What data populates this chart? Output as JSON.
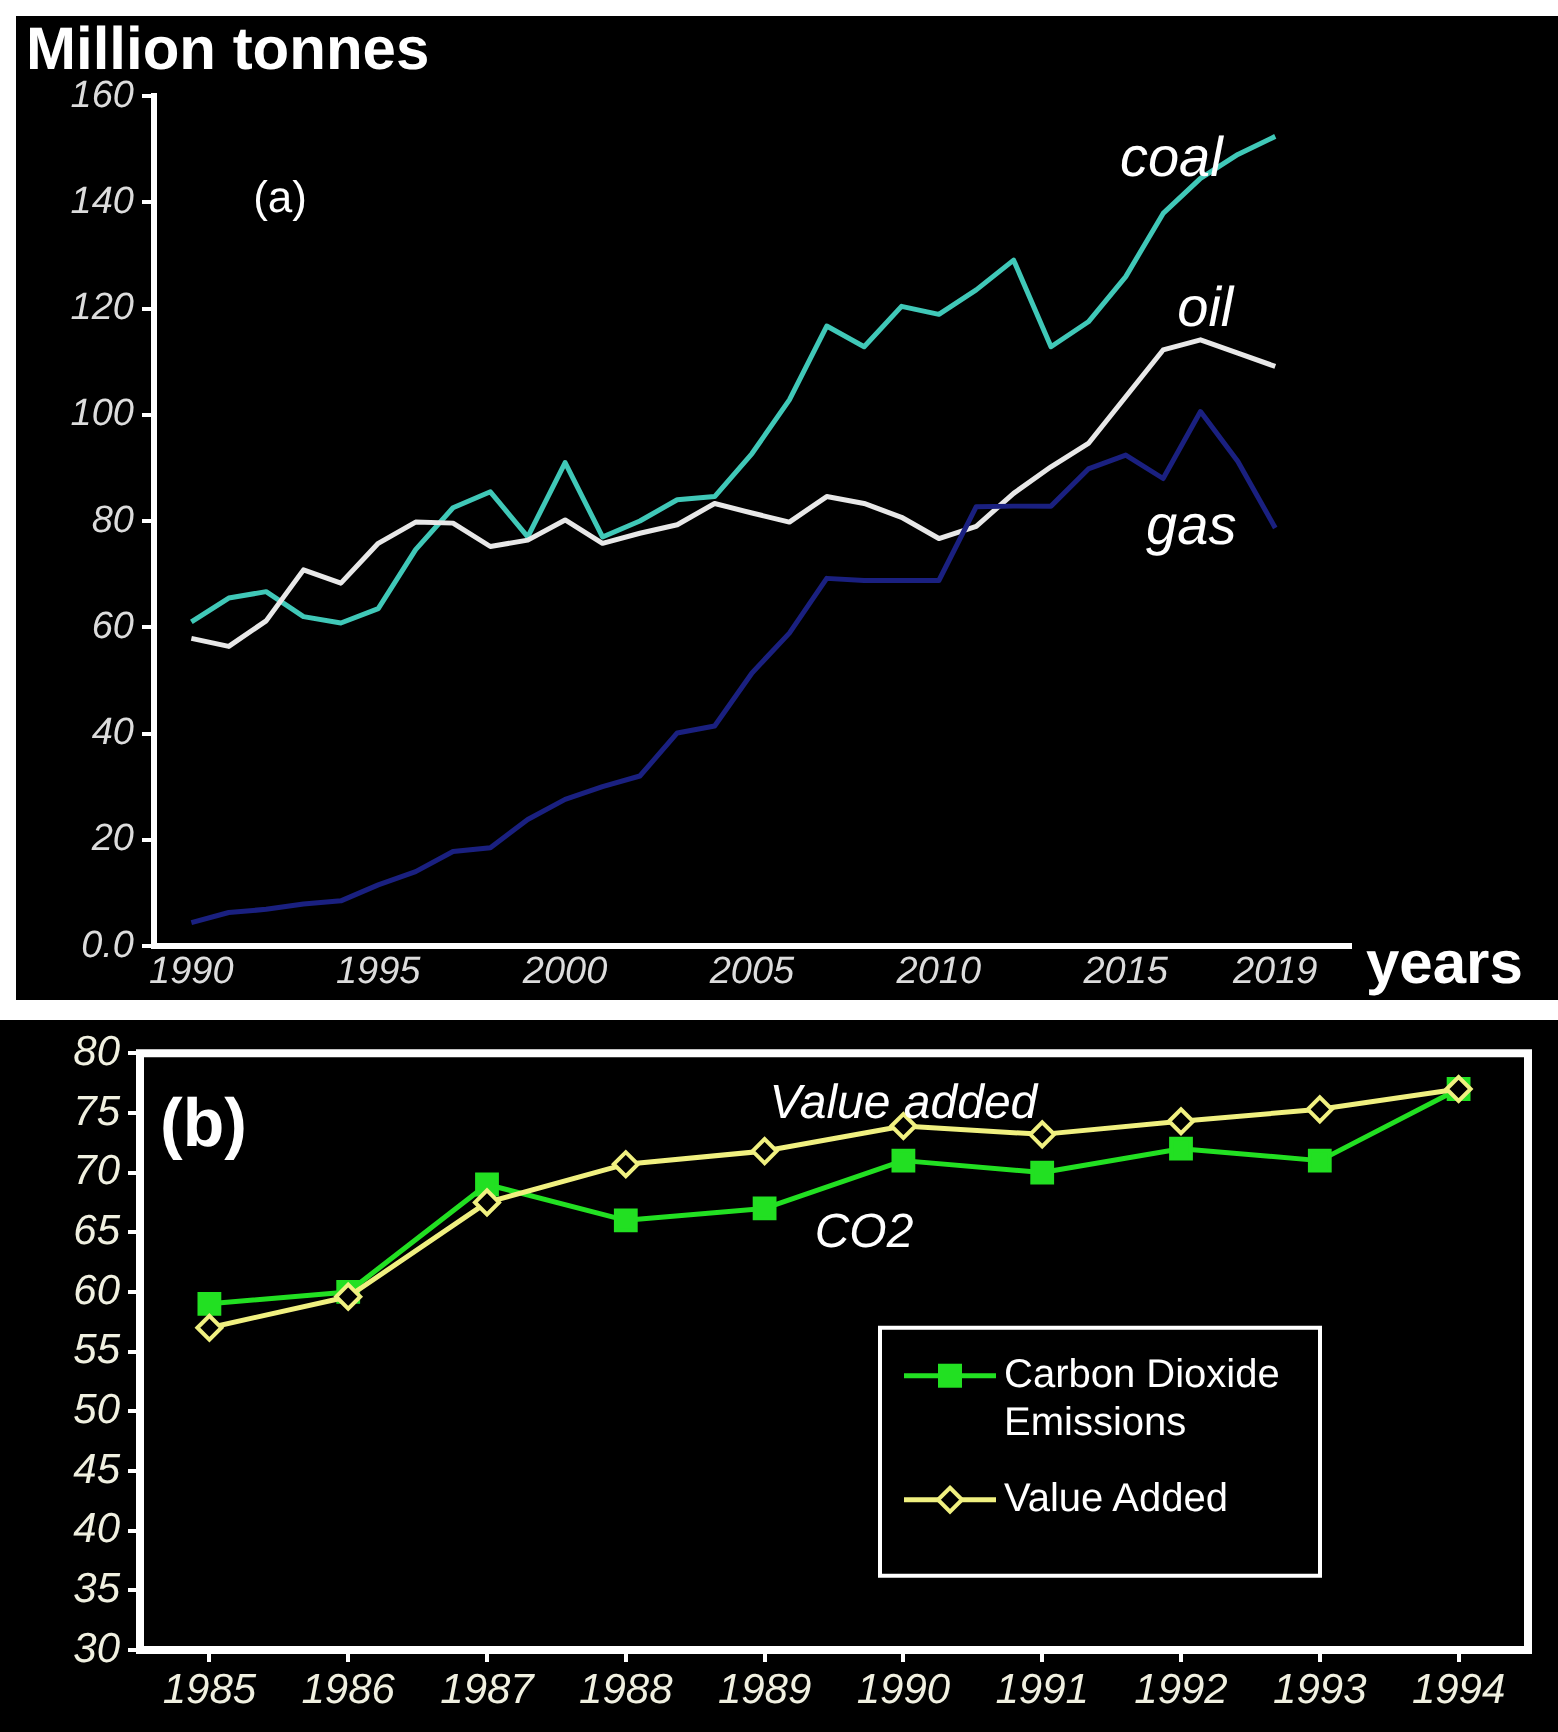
{
  "chart_data": [
    {
      "type": "line",
      "xlabel": "years",
      "ylabel": "Million tonnes",
      "annotations": [
        "(a)"
      ],
      "x": [
        1990,
        1991,
        1992,
        1993,
        1994,
        1995,
        1996,
        1997,
        1998,
        1999,
        2000,
        2001,
        2002,
        2003,
        2004,
        2005,
        2006,
        2007,
        2008,
        2009,
        2010,
        2011,
        2012,
        2013,
        2014,
        2015,
        2016,
        2017,
        2018,
        2019
      ],
      "series": [
        {
          "name": "coal",
          "color": "#40c8b8",
          "values": [
            61,
            65.5,
            66.7,
            62,
            60.8,
            63.5,
            74.6,
            82.5,
            85.5,
            77,
            91,
            77,
            80,
            84,
            84.6,
            92.7,
            102.8,
            116.7,
            112.8,
            120.4,
            118.9,
            123.5,
            129.1,
            112.8,
            117.5,
            126,
            137.9,
            144.5,
            149,
            152.4
          ]
        },
        {
          "name": "oil",
          "color": "#e8e8e8",
          "values": [
            57.9,
            56.4,
            61.2,
            70.8,
            68.3,
            75.8,
            79.8,
            79.6,
            75.2,
            76.4,
            80.2,
            75.8,
            77.7,
            79.3,
            83.3,
            81.5,
            79.8,
            84.6,
            83.3,
            80.7,
            76.7,
            79,
            85.2,
            90.2,
            94.6,
            103.4,
            112.2,
            114.1,
            111.6,
            109.1
          ]
        },
        {
          "name": "gas",
          "color": "#1a2080",
          "values": [
            4.4,
            6.3,
            6.9,
            7.9,
            8.5,
            11.5,
            14,
            17.8,
            18.5,
            23.8,
            27.6,
            30,
            32,
            40.1,
            41.4,
            51.4,
            58.9,
            69.2,
            68.8,
            68.8,
            68.8,
            82.7,
            82.8,
            82.8,
            89.8,
            92.4,
            88,
            100.6,
            91.2,
            78.7
          ]
        }
      ],
      "xlim": [
        1989,
        2021
      ],
      "xticks": [
        1990,
        1995,
        2000,
        2005,
        2010,
        2015,
        2019
      ],
      "ylim": [
        0,
        160
      ],
      "yticks": [
        {
          "value": 0,
          "label": "0.0"
        },
        20,
        40,
        60,
        80,
        100,
        120,
        140,
        160
      ],
      "grid": false,
      "legend": false
    },
    {
      "type": "line",
      "annotations": [
        "(b)",
        {
          "text": "Value added",
          "x": "1990",
          "y": 75.7
        },
        "CO2"
      ],
      "categories": [
        "1985",
        "1986",
        "1987",
        "1988",
        "1989",
        "1990",
        "1991",
        "1992",
        "1993",
        "1994"
      ],
      "series": [
        {
          "name": "Carbon Dioxide Emissions",
          "color": "#22e022",
          "marker": "square",
          "values": [
            59,
            60,
            69,
            66,
            67,
            71,
            70,
            72,
            71,
            77
          ]
        },
        {
          "name": "Value Added",
          "color": "#f0f080",
          "marker": "diamond",
          "values": [
            57,
            59.6,
            67.5,
            70.7,
            71.8,
            73.9,
            73.2,
            74.3,
            75.3,
            77
          ]
        }
      ],
      "ylim": [
        30,
        80
      ],
      "yticks": [
        30,
        35,
        40,
        45,
        50,
        55,
        60,
        65,
        70,
        75,
        80
      ],
      "grid": false,
      "legend": "right"
    }
  ]
}
